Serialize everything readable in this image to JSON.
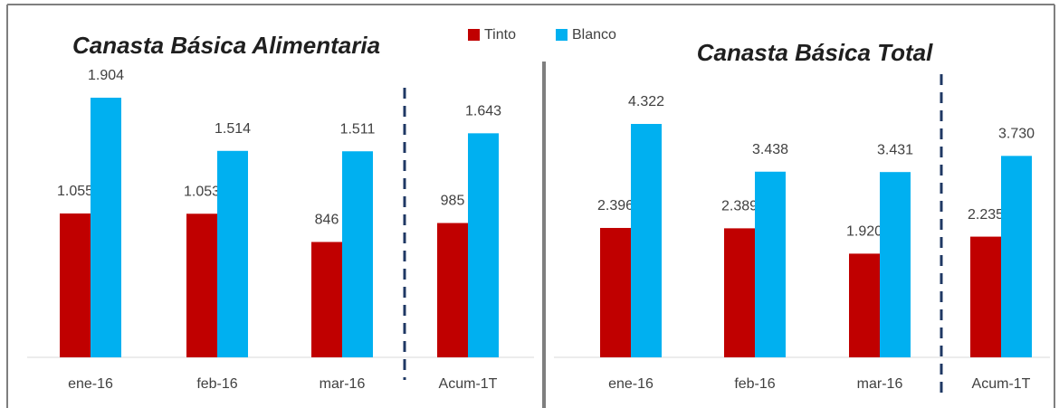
{
  "chart_data": [
    {
      "type": "bar",
      "title": "Canasta Básica Alimentaria",
      "categories": [
        "ene-16",
        "feb-16",
        "mar-16",
        "Acum-1T"
      ],
      "series": [
        {
          "name": "Tinto",
          "color": "#c00000",
          "values": [
            1055,
            1053,
            846,
            985
          ],
          "value_labels": [
            "1.055",
            "1.053",
            "846",
            "985"
          ]
        },
        {
          "name": "Blanco",
          "color": "#00b0f0",
          "values": [
            1904,
            1514,
            1511,
            1643
          ],
          "value_labels": [
            "1.904",
            "1.514",
            "1.511",
            "1.643"
          ]
        }
      ]
    },
    {
      "type": "bar",
      "title": "Canasta Básica Total",
      "categories": [
        "ene-16",
        "feb-16",
        "mar-16",
        "Acum-1T"
      ],
      "series": [
        {
          "color": "#c00000",
          "values": [
            2396,
            2389,
            1920,
            2235
          ],
          "value_labels": [
            "2.396",
            "2.389",
            "1.920",
            "2.235"
          ]
        },
        {
          "color": "#00b0f0",
          "values": [
            4322,
            3438,
            3431,
            3730
          ],
          "value_labels": [
            "4.322",
            "3.438",
            "3.431",
            "3.730"
          ]
        }
      ]
    }
  ]
}
